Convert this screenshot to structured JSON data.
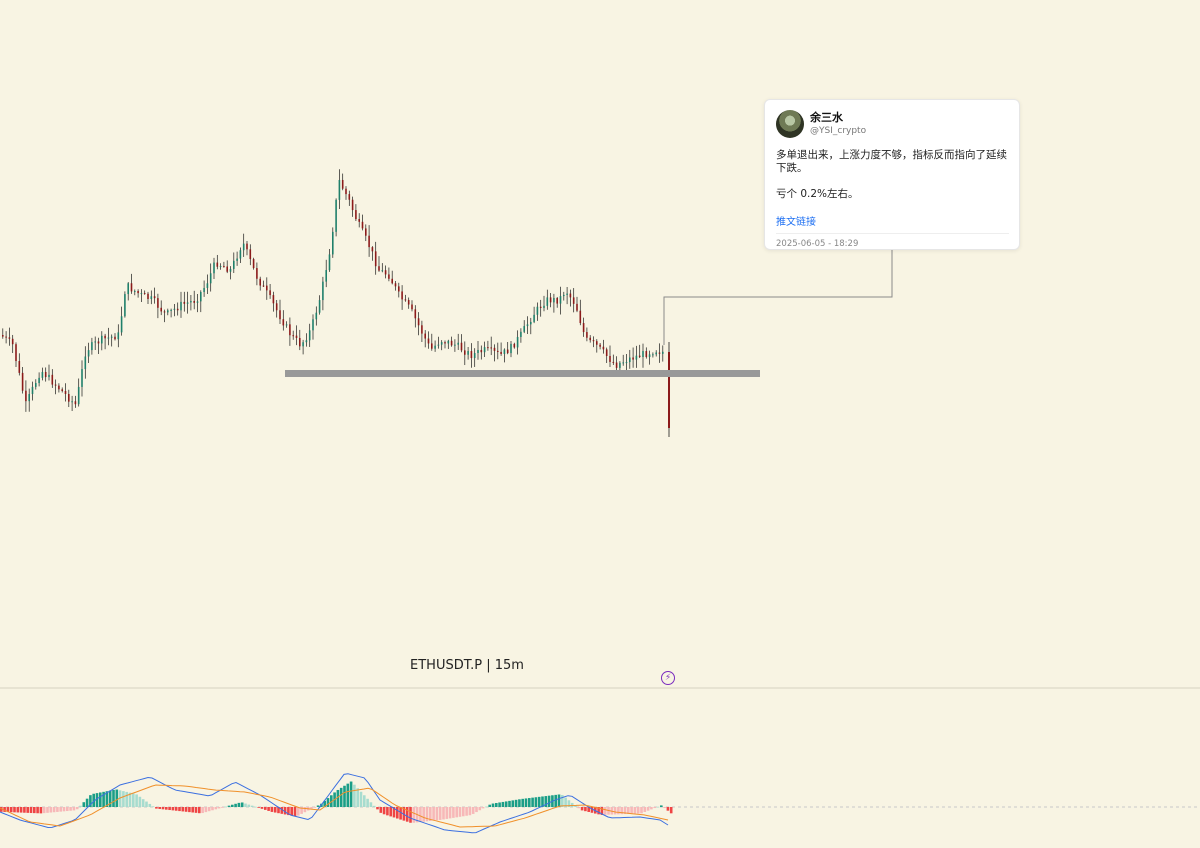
{
  "chart_data": {
    "type": "candlestick",
    "title": "ETHUSDT.P | 15m",
    "symbol": "ETHUSDT.P",
    "interval": "15m",
    "support_line": {
      "color": "#999999"
    },
    "colors": {
      "up": "#1f7f6a",
      "down": "#8b1a1a",
      "macd_line": "#3b6fe0",
      "signal_line": "#f0902a",
      "hist_pos_strong": "#1a9e87",
      "hist_pos_weak": "#a7dccf",
      "hist_neg_strong": "#ef4444",
      "hist_neg_weak": "#f7b8b8"
    },
    "indicators": [
      "MACD"
    ]
  },
  "tweet": {
    "name": "余三水",
    "handle": "@YSI_crypto",
    "text": "多单退出来，上涨力度不够，指标反而指向了延续下跌。\n\n亏个 0.2%左右。",
    "link_label": "推文链接",
    "timestamp": "2025-06-05 - 18:29",
    "avatar_icon": "avatar-icon"
  },
  "chart_title": "ETHUSDT.P  |  15m",
  "bolt": "⚡"
}
